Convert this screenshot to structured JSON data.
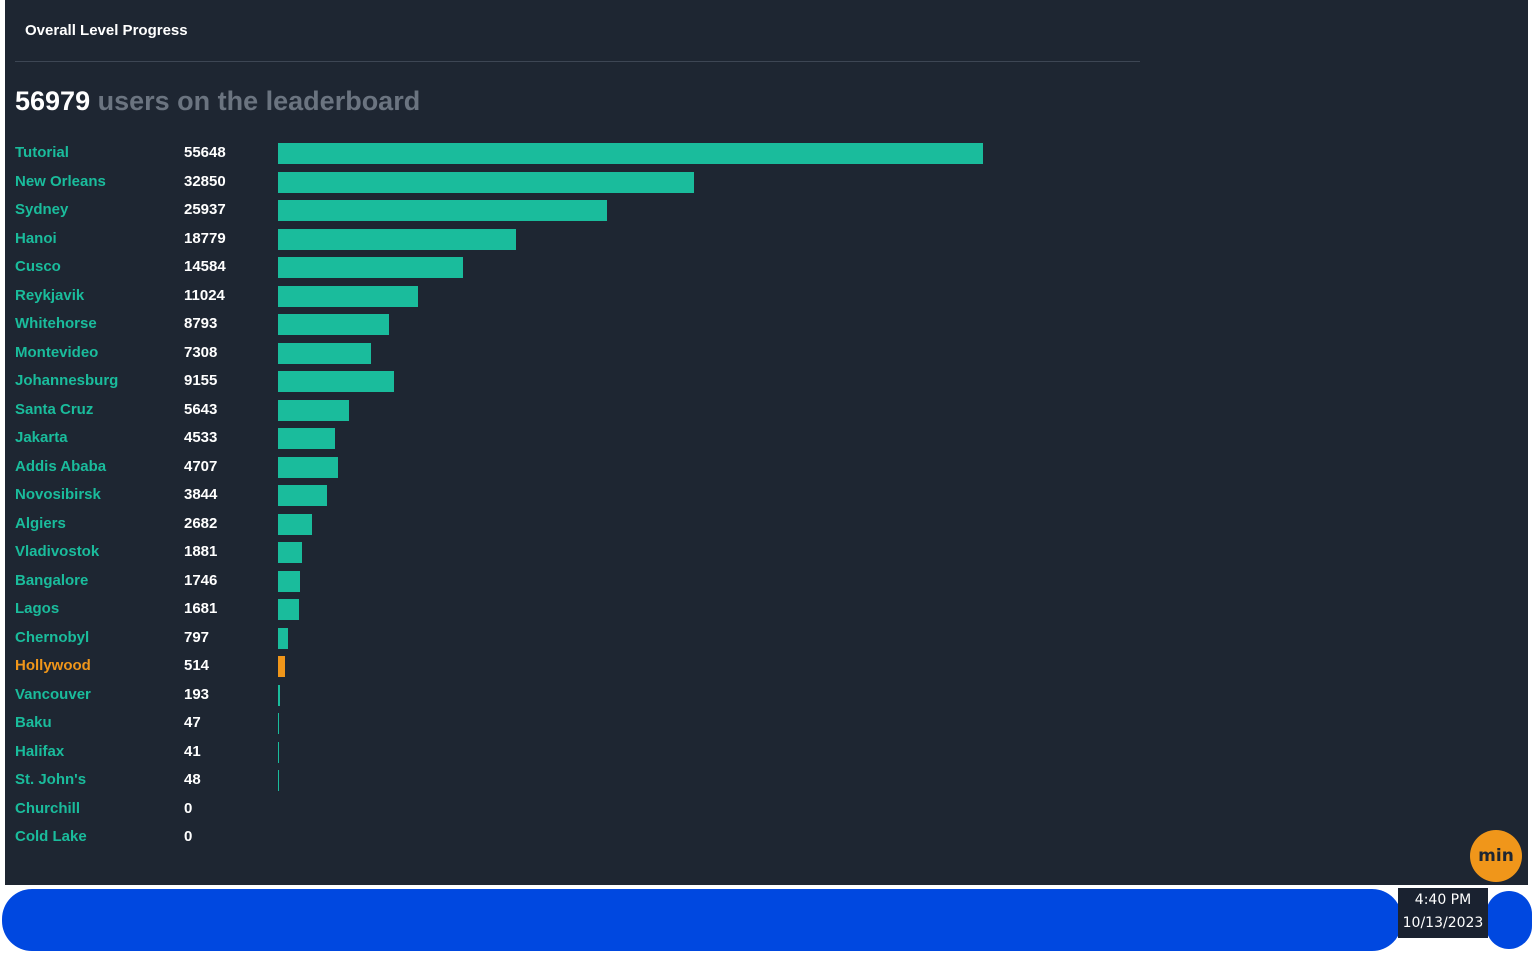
{
  "panel": {
    "title": "Overall Level Progress"
  },
  "headline": {
    "count": "56979",
    "suffix": "users on the leaderboard"
  },
  "colors": {
    "bar": "#1abc9c",
    "highlight": "#f0961a",
    "background": "#1e2632"
  },
  "chart_data": {
    "type": "bar",
    "orientation": "horizontal",
    "categories": [
      "Tutorial",
      "New Orleans",
      "Sydney",
      "Hanoi",
      "Cusco",
      "Reykjavik",
      "Whitehorse",
      "Montevideo",
      "Johannesburg",
      "Santa Cruz",
      "Jakarta",
      "Addis Ababa",
      "Novosibirsk",
      "Algiers",
      "Vladivostok",
      "Bangalore",
      "Lagos",
      "Chernobyl",
      "Hollywood",
      "Vancouver",
      "Baku",
      "Halifax",
      "St. John's",
      "Churchill",
      "Cold Lake"
    ],
    "values": [
      55648,
      32850,
      25937,
      18779,
      14584,
      11024,
      8793,
      7308,
      9155,
      5643,
      4533,
      4707,
      3844,
      2682,
      1881,
      1746,
      1681,
      797,
      514,
      193,
      47,
      41,
      48,
      0,
      0
    ],
    "highlighted_category": "Hollywood",
    "xlim": [
      0,
      55648
    ],
    "grid": false
  },
  "min_button": {
    "label": "min"
  },
  "clock": {
    "time": "4:40 PM",
    "date": "10/13/2023"
  }
}
